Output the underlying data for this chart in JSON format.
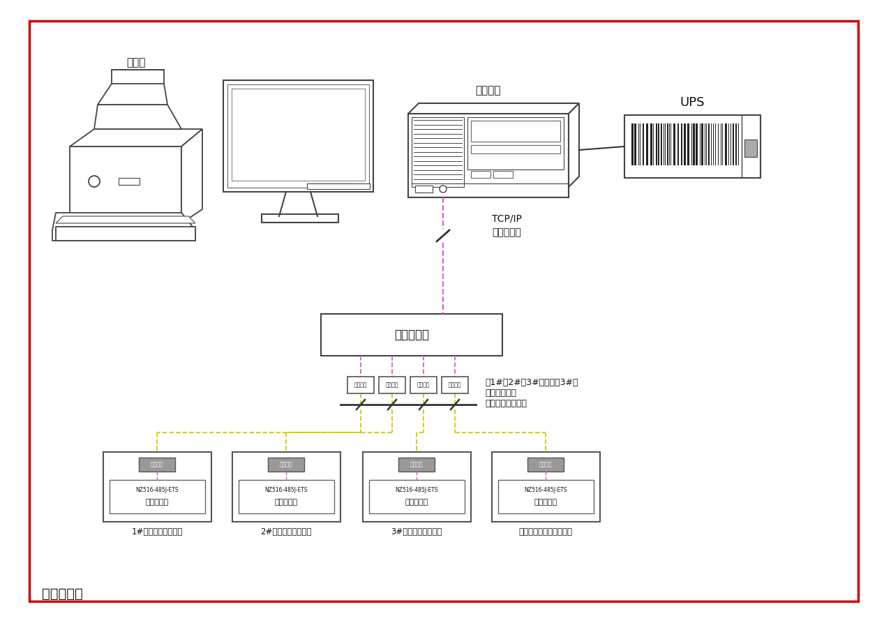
{
  "border_color": "#cc0000",
  "bg_color": "#ffffff",
  "line_magenta": "#cc66cc",
  "line_yellow": "#cccc00",
  "line_black": "#333333",
  "label_monitor_room": "监控值班室",
  "label_printer": "打印机",
  "label_system_host": "系统主机",
  "label_ups": "UPS",
  "label_network_switch": "网络交换机",
  "label_tcp": "TCP/IP",
  "label_cable": "五类八芯线",
  "label_note1": "至1#、2#、3#配电室、3#分",
  "label_note2": "配电室和保障",
  "label_note3": "性住房数据采集箱",
  "label_box1": "1#配电室数据采集箱",
  "label_box2": "2#配电室数据采集箱",
  "label_box3": "3#配电室数据采集箱",
  "label_box4": "保障性配电室数据采集箱",
  "label_serial_server": "串口服务器",
  "label_model": "NZ516-485J-ETS",
  "label_collector": "数据采集"
}
